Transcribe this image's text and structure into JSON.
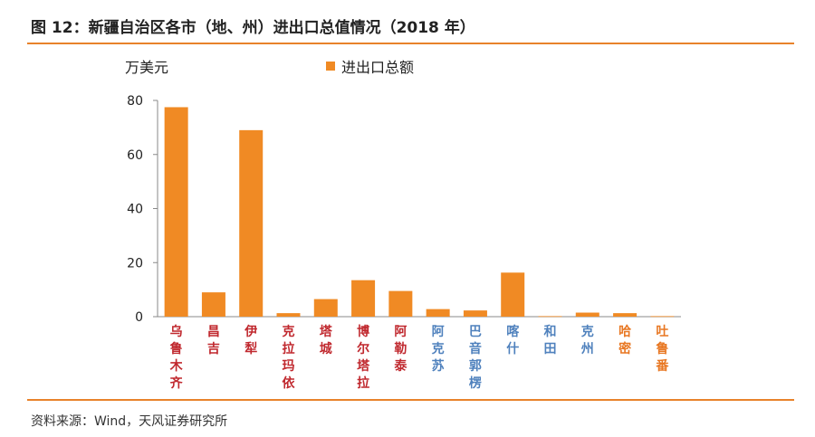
{
  "header": {
    "title": "图 12：新疆自治区各市（地、州）进出口总值情况（2018 年）"
  },
  "footer": {
    "source": "资料来源：Wind，天风证券研究所"
  },
  "colors": {
    "accent": "#e8822a",
    "bar": "#f08a24",
    "red_label": "#c0282e",
    "blue_label": "#4f81bd",
    "orange_label": "#e87722"
  },
  "chart_data": {
    "type": "bar",
    "unit_label": "万美元",
    "legend": "进出口总额",
    "categories": [
      "乌鲁木齐",
      "昌吉",
      "伊犁",
      "克拉玛依",
      "塔城",
      "博尔塔拉",
      "阿勒泰",
      "阿克苏",
      "巴音郭楞",
      "喀什",
      "和田",
      "克州",
      "哈密",
      "吐鲁番"
    ],
    "category_colors": [
      "red",
      "red",
      "red",
      "red",
      "red",
      "red",
      "red",
      "blue",
      "blue",
      "blue",
      "blue",
      "blue",
      "orange",
      "orange"
    ],
    "values": [
      77.5,
      9,
      69,
      1.3,
      6.5,
      13.5,
      9.5,
      2.8,
      2.3,
      16.3,
      0.2,
      1.5,
      1.3,
      0.2
    ],
    "ylim": [
      0,
      80
    ],
    "yticks": [
      "0",
      "20",
      "40",
      "60",
      "80"
    ],
    "grid": false,
    "legend_position": "top"
  }
}
